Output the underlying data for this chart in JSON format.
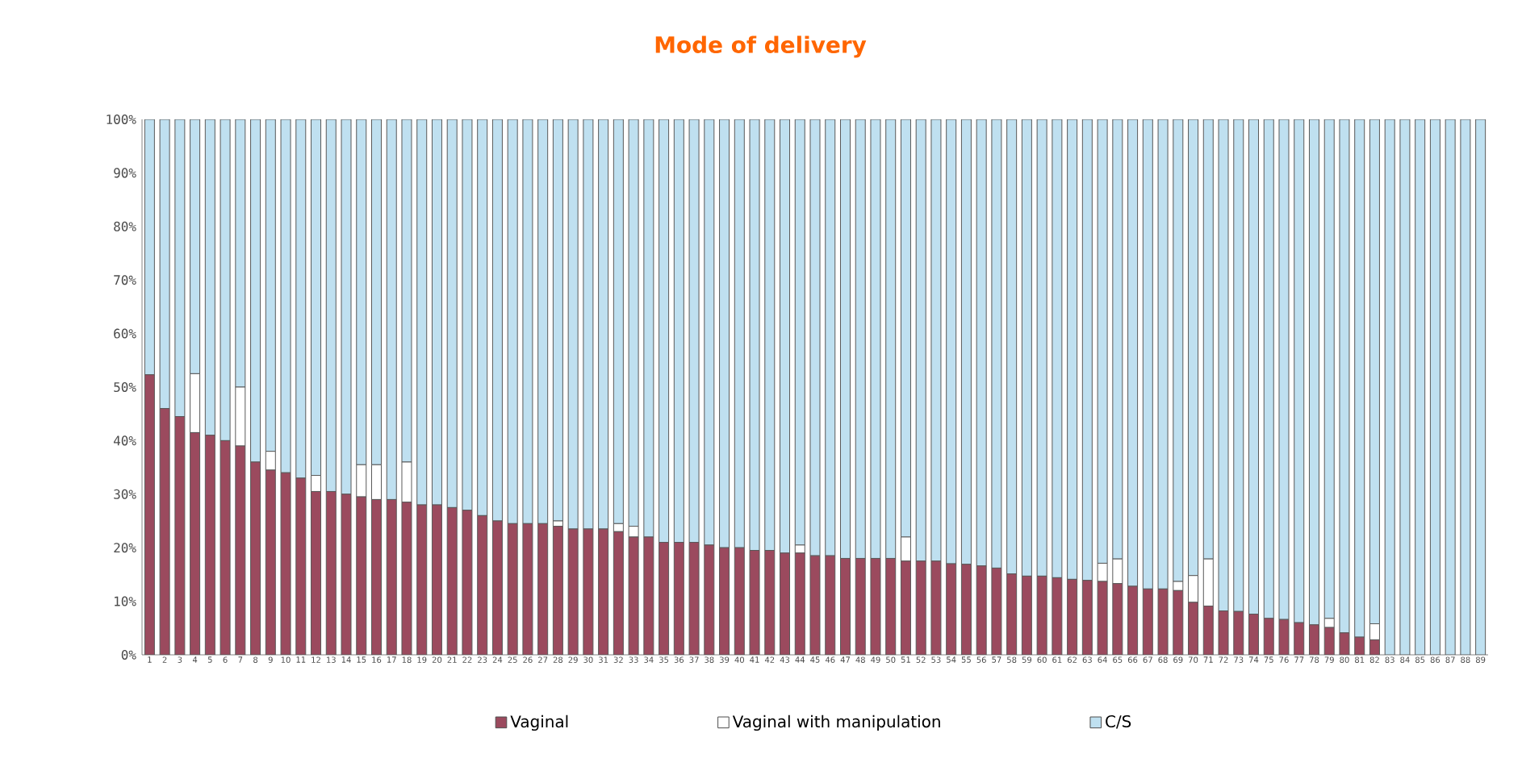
{
  "chart_data": {
    "type": "bar",
    "title": "Mode of delivery",
    "stacked": true,
    "legend": "bottom",
    "categories": [
      "1",
      "2",
      "3",
      "4",
      "5",
      "6",
      "7",
      "8",
      "9",
      "10",
      "11",
      "12",
      "13",
      "14",
      "15",
      "16",
      "17",
      "18",
      "19",
      "20",
      "21",
      "22",
      "23",
      "24",
      "25",
      "26",
      "27",
      "28",
      "29",
      "30",
      "31",
      "32",
      "33",
      "34",
      "35",
      "36",
      "37",
      "38",
      "39",
      "40",
      "41",
      "42",
      "43",
      "44",
      "45",
      "46",
      "47",
      "48",
      "49",
      "50",
      "51",
      "52",
      "53",
      "54",
      "55",
      "56",
      "57",
      "58",
      "59",
      "60",
      "61",
      "62",
      "63",
      "64",
      "65",
      "66",
      "67",
      "68",
      "69",
      "70",
      "71",
      "72",
      "73",
      "74",
      "75",
      "76",
      "77",
      "78",
      "79",
      "80",
      "81",
      "82",
      "83",
      "84",
      "85",
      "86",
      "87",
      "88",
      "89"
    ],
    "ylim": [
      0,
      100
    ],
    "yticks": [
      {
        "value": 0,
        "label": "0%"
      },
      {
        "value": 10,
        "label": "10%"
      },
      {
        "value": 20,
        "label": "20%"
      },
      {
        "value": 30,
        "label": "30%"
      },
      {
        "value": 40,
        "label": "40%"
      },
      {
        "value": 50,
        "label": "50%"
      },
      {
        "value": 60,
        "label": "60%"
      },
      {
        "value": 70,
        "label": "70%"
      },
      {
        "value": 80,
        "label": "80%"
      },
      {
        "value": 90,
        "label": "90%"
      },
      {
        "value": 100,
        "label": "100%"
      }
    ],
    "series": [
      {
        "name": "Vaginal",
        "color": "#9b4a5e",
        "values": [
          52.3,
          46,
          44.5,
          41.5,
          41,
          40,
          39,
          36,
          34.5,
          34,
          33,
          30.5,
          30.5,
          30,
          29.5,
          29,
          29,
          28.5,
          28,
          28,
          27.5,
          27,
          26,
          25,
          24.5,
          24.5,
          24.5,
          24,
          23.5,
          23.5,
          23.5,
          23,
          22,
          22,
          21,
          21,
          21,
          20.5,
          20,
          20,
          19.5,
          19.5,
          19,
          19,
          18.5,
          18.5,
          18,
          18,
          18,
          18,
          17.5,
          17.5,
          17.5,
          17,
          16.9,
          16.6,
          16.2,
          15.1,
          14.7,
          14.7,
          14.4,
          14.1,
          13.9,
          13.7,
          13.3,
          12.8,
          12.3,
          12.3,
          12.0,
          9.8,
          9.1,
          8.2,
          8.1,
          7.6,
          6.8,
          6.6,
          6.0,
          5.6,
          5.1,
          4.1,
          3.3,
          2.8,
          0,
          0,
          0,
          0,
          0,
          0,
          0
        ]
      },
      {
        "name": "Vaginal with manipulation",
        "color": "#ffffff",
        "values": [
          0,
          0,
          0,
          11,
          0,
          0,
          11,
          0,
          3.5,
          0,
          0,
          3,
          0,
          0,
          6,
          6.5,
          0,
          7.5,
          0,
          0,
          0,
          0,
          0,
          0,
          0,
          0,
          0,
          1,
          0,
          0,
          0,
          1.5,
          2,
          0,
          0,
          0,
          0,
          0,
          0,
          0,
          0,
          0,
          0,
          1.5,
          0,
          0,
          0,
          0,
          0,
          0,
          4.5,
          0,
          0,
          0,
          0,
          0,
          0,
          0,
          0,
          0,
          0,
          0,
          0,
          3.4,
          4.6,
          0,
          0,
          0,
          1.7,
          5,
          8.8,
          0,
          0,
          0,
          0,
          0,
          0,
          0,
          1.7,
          0,
          0,
          3,
          0,
          0,
          0,
          0,
          0,
          0,
          0
        ]
      },
      {
        "name": "C/S",
        "color": "#bfe0f0",
        "values": [
          47.7,
          54,
          55.5,
          47.5,
          59,
          60,
          50,
          64,
          62,
          66,
          67,
          66.5,
          69.5,
          70,
          64.5,
          64.5,
          71,
          64,
          72,
          72,
          72.5,
          73,
          74,
          75,
          75.5,
          75.5,
          75.5,
          75,
          76.5,
          76.5,
          76.5,
          75.5,
          76,
          78,
          79,
          79,
          79,
          79.5,
          80,
          80,
          80.5,
          80.5,
          81,
          79.5,
          81.5,
          81.5,
          82,
          82,
          82,
          82,
          78,
          82.5,
          82.5,
          83,
          83.1,
          83.4,
          83.8,
          84.9,
          85.3,
          85.3,
          85.6,
          85.9,
          86.1,
          82.9,
          82.1,
          87.2,
          87.7,
          87.7,
          86.3,
          85.2,
          82.1,
          91.8,
          91.9,
          92.4,
          93.2,
          93.4,
          94,
          94.4,
          93.2,
          95.9,
          96.7,
          94.2,
          100,
          100,
          100,
          100,
          100,
          100,
          100
        ]
      }
    ]
  }
}
